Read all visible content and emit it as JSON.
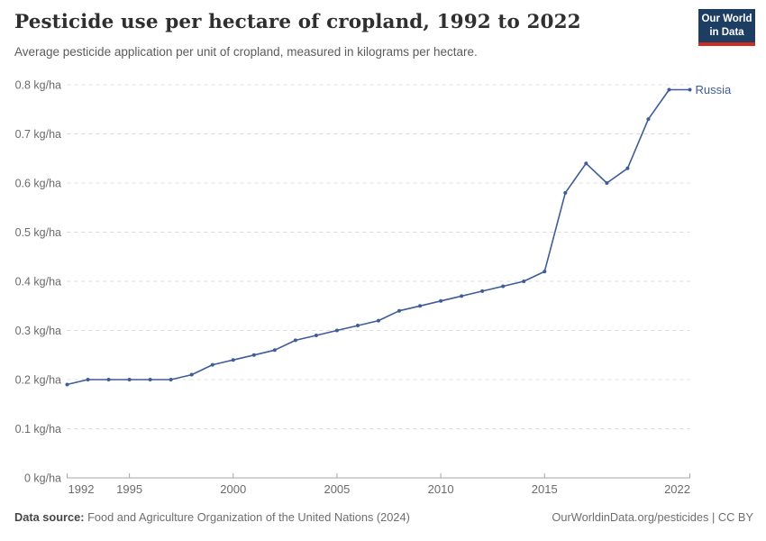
{
  "header": {
    "title": "Pesticide use per hectare of cropland, 1992 to 2022",
    "subtitle": "Average pesticide application per unit of cropland, measured in kilograms per hectare.",
    "logo": {
      "line1": "Our World",
      "line2": "in Data"
    }
  },
  "chart_data": {
    "type": "line",
    "title": "Pesticide use per hectare of cropland, 1992 to 2022",
    "xlabel": "",
    "ylabel": "kg/ha",
    "xlim": [
      1992,
      2022
    ],
    "ylim": [
      0,
      0.8
    ],
    "grid": "horizontal-dashed",
    "legend_position": "end-of-line-label",
    "x_ticks": [
      1992,
      1995,
      2000,
      2005,
      2010,
      2015,
      2022
    ],
    "y_ticks": [
      0,
      0.1,
      0.2,
      0.3,
      0.4,
      0.5,
      0.6,
      0.7,
      0.8
    ],
    "y_tick_labels": [
      "0 kg/ha",
      "0.1 kg/ha",
      "0.2 kg/ha",
      "0.3 kg/ha",
      "0.4 kg/ha",
      "0.5 kg/ha",
      "0.6 kg/ha",
      "0.7 kg/ha",
      "0.8 kg/ha"
    ],
    "x": [
      1992,
      1993,
      1994,
      1995,
      1996,
      1997,
      1998,
      1999,
      2000,
      2001,
      2002,
      2003,
      2004,
      2005,
      2006,
      2007,
      2008,
      2009,
      2010,
      2011,
      2012,
      2013,
      2014,
      2015,
      2016,
      2017,
      2018,
      2019,
      2020,
      2021,
      2022
    ],
    "series": [
      {
        "name": "Russia",
        "color": "#3e5c96",
        "values": [
          0.19,
          0.2,
          0.2,
          0.2,
          0.2,
          0.2,
          0.21,
          0.23,
          0.24,
          0.25,
          0.26,
          0.28,
          0.29,
          0.3,
          0.31,
          0.32,
          0.34,
          0.35,
          0.36,
          0.37,
          0.38,
          0.39,
          0.4,
          0.42,
          0.58,
          0.64,
          0.6,
          0.63,
          0.73,
          0.79,
          0.79
        ]
      }
    ]
  },
  "footer": {
    "datasource_label": "Data source:",
    "datasource_text": " Food and Agriculture Organization of the United Nations (2024)",
    "link": "OurWorldinData.org/pesticides",
    "separator": " | ",
    "license": "CC BY"
  },
  "colors": {
    "accent_line": "#3e5c96",
    "gridline": "#dcdcdc",
    "axis": "#a5a5a5",
    "tick_text": "#6b6b6b",
    "logo_navy": "#1d3d63",
    "logo_red": "#cf2d23"
  }
}
